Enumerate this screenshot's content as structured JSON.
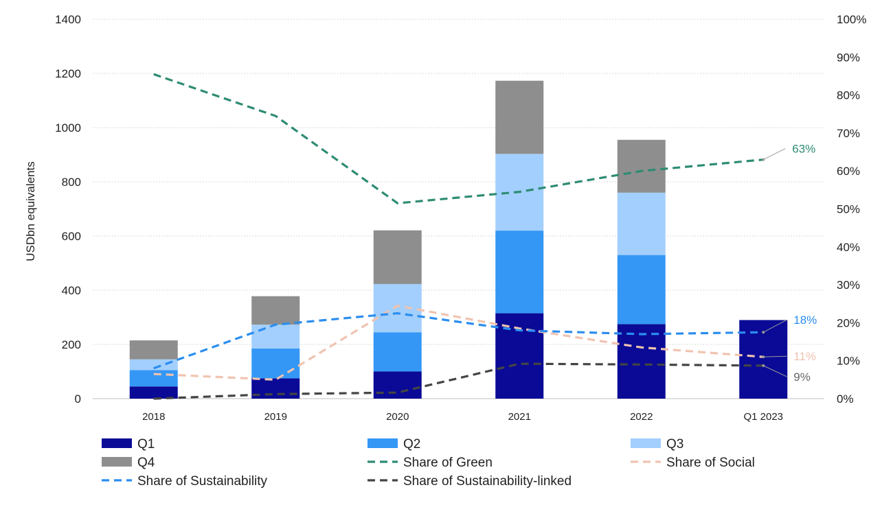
{
  "chart_data": {
    "type": "bar",
    "stacked": true,
    "categories": [
      "2018",
      "2019",
      "2020",
      "2021",
      "2022",
      "Q1 2023"
    ],
    "ylabel": "USDbn equivalents",
    "ylim": [
      0,
      1400
    ],
    "yticks": [
      0,
      200,
      400,
      600,
      800,
      1000,
      1200,
      1400
    ],
    "y2lim": [
      0,
      100
    ],
    "y2ticks": [
      "0%",
      "10%",
      "20%",
      "30%",
      "40%",
      "50%",
      "60%",
      "70%",
      "80%",
      "90%",
      "100%"
    ],
    "grid": true,
    "legend_position": "bottom",
    "bar_series": [
      {
        "name": "Q1",
        "color": "#0a0a96",
        "values": [
          45,
          75,
          100,
          315,
          275,
          290
        ]
      },
      {
        "name": "Q2",
        "color": "#3497f5",
        "values": [
          60,
          110,
          145,
          305,
          255,
          0
        ]
      },
      {
        "name": "Q3",
        "color": "#a2cffd",
        "values": [
          40,
          88,
          178,
          283,
          230,
          0
        ]
      },
      {
        "name": "Q4",
        "color": "#8e8e8e",
        "values": [
          70,
          105,
          198,
          270,
          195,
          0
        ]
      }
    ],
    "line_series": [
      {
        "name": "Share of Green",
        "color": "#2e8b73",
        "values": [
          85.5,
          74.5,
          51.5,
          54.5,
          60,
          63
        ]
      },
      {
        "name": "Share of Social",
        "color": "#f0c3b0",
        "values": [
          6.5,
          5,
          24.5,
          18.5,
          13.5,
          11
        ]
      },
      {
        "name": "Share of Sustainability",
        "color": "#2a8def",
        "values": [
          8,
          19.5,
          22.5,
          18,
          17,
          17.5
        ]
      },
      {
        "name": "Share of Sustainability-linked",
        "color": "#444444",
        "values": [
          0,
          1.2,
          1.6,
          9.2,
          9,
          8.7
        ]
      }
    ],
    "annotations": [
      {
        "text": "63%",
        "series": "Share of Green",
        "color": "#2e8b73"
      },
      {
        "text": "18%",
        "series": "Share of Sustainability",
        "color": "#2a8def"
      },
      {
        "text": "11%",
        "series": "Share of Social",
        "color": "#f0c3b0"
      },
      {
        "text": "9%",
        "series": "Share of Sustainability-linked",
        "color": "#666666"
      }
    ],
    "legend": [
      {
        "name": "Q1",
        "kind": "bar"
      },
      {
        "name": "Q2",
        "kind": "bar"
      },
      {
        "name": "Q3",
        "kind": "bar"
      },
      {
        "name": "Q4",
        "kind": "bar"
      },
      {
        "name": "Share of Green",
        "kind": "line"
      },
      {
        "name": "Share of Social",
        "kind": "line"
      },
      {
        "name": "Share of Sustainability",
        "kind": "line"
      },
      {
        "name": "Share of Sustainability-linked",
        "kind": "line"
      }
    ]
  }
}
